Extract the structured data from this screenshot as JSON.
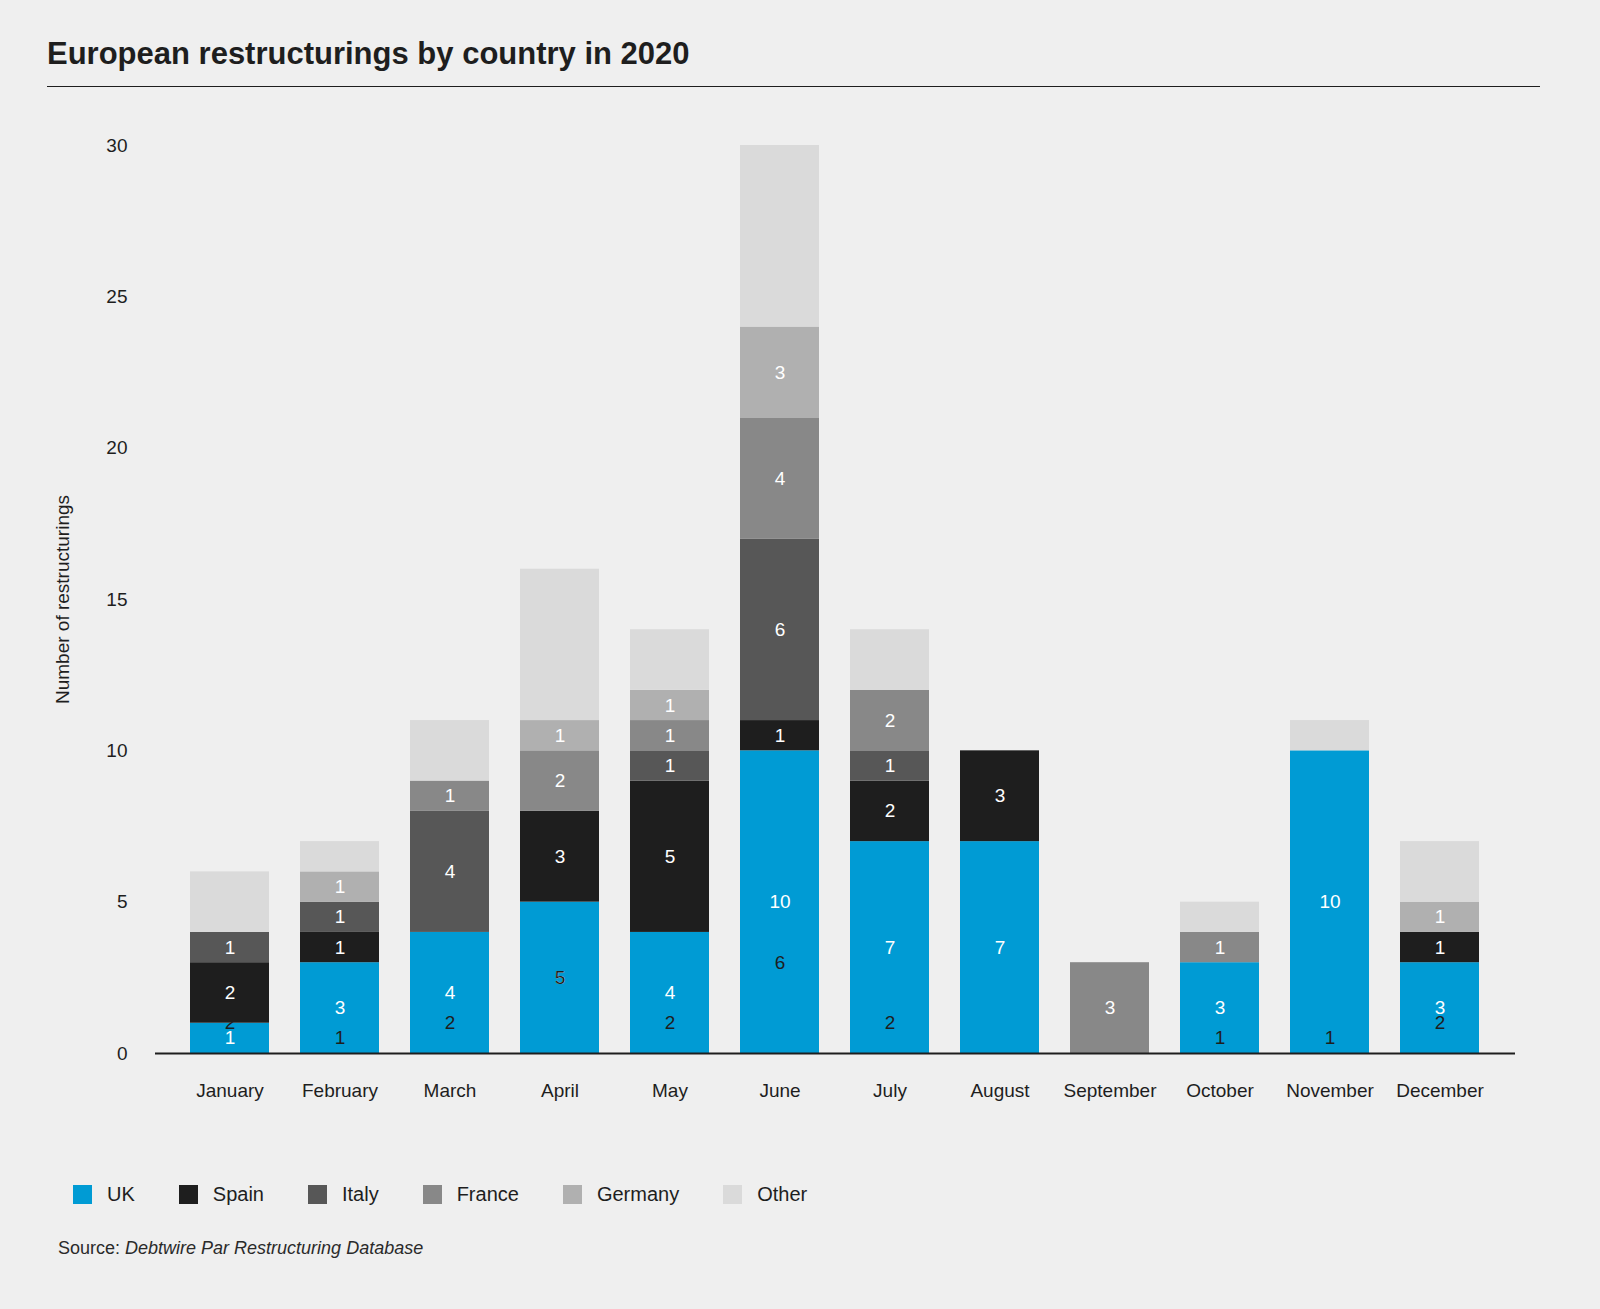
{
  "chart_data": {
    "type": "bar",
    "title": "European restructurings by country in 2020",
    "y_label": "Number of restructurings",
    "source_prefix": "Source:",
    "source": "Debtwire Par Restructuring Database",
    "categories": [
      "January",
      "February",
      "March",
      "April",
      "May",
      "June",
      "July",
      "August",
      "September",
      "October",
      "November",
      "December"
    ],
    "series": [
      {
        "name": "UK",
        "color": "#009bd4",
        "values": [
          1,
          3,
          4,
          5,
          4,
          10,
          7,
          7,
          null,
          3,
          10,
          3
        ]
      },
      {
        "name": "Spain",
        "color": "#1e1e1e",
        "values": [
          2,
          1,
          null,
          3,
          5,
          1,
          2,
          3,
          null,
          null,
          null,
          1
        ]
      },
      {
        "name": "Italy",
        "color": "#575757",
        "values": [
          1,
          1,
          4,
          null,
          1,
          6,
          1,
          null,
          null,
          null,
          null,
          null
        ]
      },
      {
        "name": "France",
        "color": "#888888",
        "values": [
          null,
          null,
          1,
          2,
          1,
          4,
          2,
          null,
          3,
          1,
          null,
          null
        ]
      },
      {
        "name": "Germany",
        "color": "#b0b0b0",
        "values": [
          null,
          1,
          null,
          1,
          1,
          3,
          null,
          null,
          null,
          null,
          null,
          1
        ]
      },
      {
        "name": "Other",
        "color": "#dadada",
        "values": [
          2,
          1,
          2,
          5,
          2,
          6,
          2,
          null,
          null,
          1,
          1,
          2
        ]
      }
    ],
    "ylim": [
      0,
      30
    ],
    "yticks": [
      0,
      5,
      10,
      15,
      20,
      25,
      30
    ],
    "stacked": true,
    "data_labels": true,
    "grid": false,
    "legend": "bottom-left"
  }
}
